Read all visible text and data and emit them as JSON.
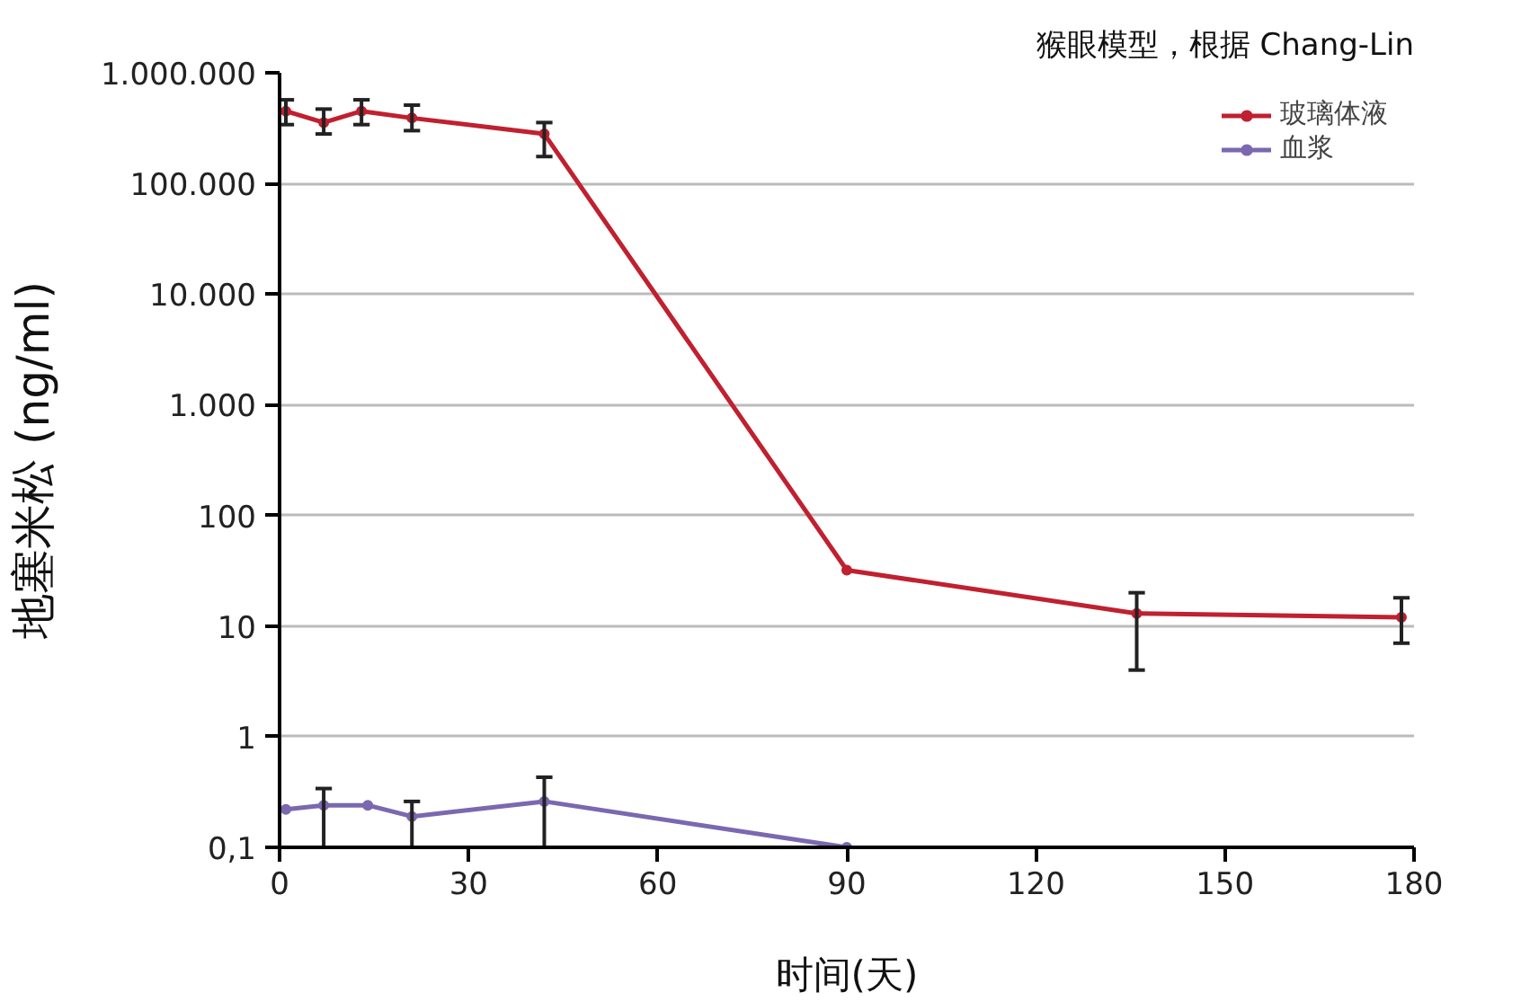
{
  "chart_data": {
    "type": "line",
    "title": "猴眼模型，根据 Chang-Lin",
    "xlabel": "时间(天)",
    "ylabel": "地塞米松 (ng/ml)",
    "series": [
      {
        "name": "玻璃体液",
        "color": "#c0202f",
        "x": [
          1,
          7,
          13,
          21,
          42,
          90,
          136,
          178
        ],
        "values": [
          450000,
          355000,
          450000,
          390000,
          280000,
          32,
          13,
          12
        ],
        "errors": [
          [
            340000,
            570000
          ],
          [
            280000,
            470000
          ],
          [
            340000,
            570000
          ],
          [
            300000,
            510000
          ],
          [
            175000,
            355000
          ],
          null,
          [
            4,
            20
          ],
          [
            7,
            18
          ]
        ]
      },
      {
        "name": "血浆",
        "color": "#7b68b0",
        "x": [
          1,
          7,
          14,
          21,
          42,
          90
        ],
        "values": [
          0.22,
          0.24,
          0.24,
          0.19,
          0.26,
          0.1
        ],
        "errors": [
          null,
          [
            0.1,
            0.34
          ],
          null,
          [
            0.1,
            0.26
          ],
          [
            0.1,
            0.43
          ],
          null
        ]
      }
    ],
    "xlim": [
      0,
      180
    ],
    "xticks": [
      0,
      30,
      60,
      90,
      120,
      150,
      180
    ],
    "ylim": [
      0.1,
      1000000
    ],
    "yticks": [
      {
        "value": 0.1,
        "label": "0,1"
      },
      1,
      10,
      100,
      {
        "value": 1000,
        "label": "1.000"
      },
      {
        "value": 10000,
        "label": "10.000"
      },
      {
        "value": 100000,
        "label": "100.000"
      },
      {
        "value": 1000000,
        "label": "1.000.000"
      }
    ],
    "log": "y",
    "grid": "y",
    "legend": "top right",
    "marker": "circle",
    "line_style": "solid"
  }
}
